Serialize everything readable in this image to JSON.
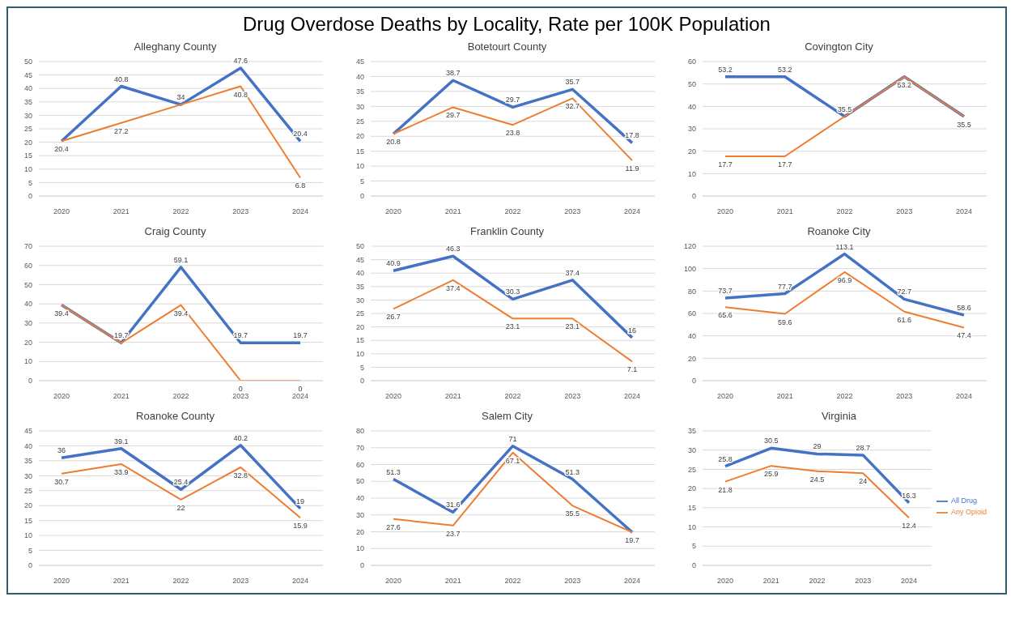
{
  "chart_data": [
    {
      "type": "other",
      "title": "Drug Overdose Deaths by Locality, Rate per 100K Population"
    },
    {
      "type": "line",
      "title": "Alleghany County",
      "categories": [
        "2020",
        "2021",
        "2022",
        "2023",
        "2024"
      ],
      "ylim": [
        0,
        50
      ],
      "yticks": [
        0,
        5,
        10,
        15,
        20,
        25,
        30,
        35,
        40,
        45,
        50
      ],
      "grid": "y",
      "series": [
        {
          "color": "#4472c4",
          "values": [
            20.4,
            40.8,
            34,
            47.6,
            20.4
          ],
          "value_labels": [
            null,
            "40.8",
            "34",
            "47.6",
            "20.4"
          ]
        },
        {
          "color": "#ed7d31",
          "values": [
            20.4,
            27.2,
            34,
            40.8,
            6.8
          ],
          "value_labels": [
            "20.4",
            "27.2",
            null,
            "40.8",
            "6.8"
          ]
        }
      ]
    },
    {
      "type": "line",
      "title": "Botetourt County",
      "categories": [
        "2020",
        "2021",
        "2022",
        "2023",
        "2024"
      ],
      "ylim": [
        0,
        45
      ],
      "yticks": [
        0,
        5,
        10,
        15,
        20,
        25,
        30,
        35,
        40,
        45
      ],
      "grid": "y",
      "series": [
        {
          "color": "#4472c4",
          "values": [
            20.8,
            38.7,
            29.7,
            35.7,
            17.8
          ],
          "value_labels": [
            null,
            "38.7",
            "29.7",
            "35.7",
            "17.8"
          ]
        },
        {
          "color": "#ed7d31",
          "values": [
            20.8,
            29.7,
            23.8,
            32.7,
            11.9
          ],
          "value_labels": [
            "20.8",
            "29.7",
            "23.8",
            "32.7",
            "11.9"
          ]
        }
      ]
    },
    {
      "type": "line",
      "title": "Covington City",
      "categories": [
        "2020",
        "2021",
        "2022",
        "2023",
        "2024"
      ],
      "ylim": [
        0,
        60
      ],
      "yticks": [
        0,
        10,
        20,
        30,
        40,
        50,
        60
      ],
      "grid": "y",
      "series": [
        {
          "color": "#4472c4",
          "values": [
            53.2,
            53.2,
            35.5,
            53.2,
            35.5
          ],
          "value_labels": [
            "53.2",
            "53.2",
            "35.5",
            null,
            null
          ]
        },
        {
          "color": "#ed7d31",
          "values": [
            17.7,
            17.7,
            35.5,
            53.2,
            35.5
          ],
          "value_labels": [
            "17.7",
            "17.7",
            null,
            "53.2",
            "35.5"
          ]
        }
      ]
    },
    {
      "type": "line",
      "title": "Craig County",
      "categories": [
        "2020",
        "2021",
        "2022",
        "2023",
        "2024"
      ],
      "ylim": [
        0,
        70
      ],
      "yticks": [
        0,
        10,
        20,
        30,
        40,
        50,
        60,
        70
      ],
      "grid": "y",
      "series": [
        {
          "color": "#4472c4",
          "values": [
            39.4,
            19.7,
            59.1,
            19.7,
            19.7
          ],
          "value_labels": [
            null,
            "19.7",
            "59.1",
            "19.7",
            "19.7"
          ]
        },
        {
          "color": "#ed7d31",
          "values": [
            39.4,
            19.7,
            39.4,
            0,
            0
          ],
          "value_labels": [
            "39.4",
            null,
            "39.4",
            "0",
            "0"
          ]
        }
      ]
    },
    {
      "type": "line",
      "title": "Franklin County",
      "categories": [
        "2020",
        "2021",
        "2022",
        "2023",
        "2024"
      ],
      "ylim": [
        0,
        50
      ],
      "yticks": [
        0,
        5,
        10,
        15,
        20,
        25,
        30,
        35,
        40,
        45,
        50
      ],
      "grid": "y",
      "series": [
        {
          "color": "#4472c4",
          "values": [
            40.9,
            46.3,
            30.3,
            37.4,
            16
          ],
          "value_labels": [
            "40.9",
            "46.3",
            "30.3",
            "37.4",
            "16"
          ]
        },
        {
          "color": "#ed7d31",
          "values": [
            26.7,
            37.4,
            23.1,
            23.1,
            7.1
          ],
          "value_labels": [
            "26.7",
            "37.4",
            "23.1",
            "23.1",
            "7.1"
          ]
        }
      ]
    },
    {
      "type": "line",
      "title": "Roanoke City",
      "categories": [
        "2020",
        "2021",
        "2022",
        "2023",
        "2024"
      ],
      "ylim": [
        0,
        120
      ],
      "yticks": [
        0,
        20,
        40,
        60,
        80,
        100,
        120
      ],
      "grid": "y",
      "series": [
        {
          "color": "#4472c4",
          "values": [
            73.7,
            77.7,
            113.1,
            72.7,
            58.6
          ],
          "value_labels": [
            "73.7",
            "77.7",
            "113.1",
            "72.7",
            "58.6"
          ]
        },
        {
          "color": "#ed7d31",
          "values": [
            65.6,
            59.6,
            96.9,
            61.6,
            47.4
          ],
          "value_labels": [
            "65.6",
            "59.6",
            "96.9",
            "61.6",
            "47.4"
          ]
        }
      ]
    },
    {
      "type": "line",
      "title": "Roanoke County",
      "categories": [
        "2020",
        "2021",
        "2022",
        "2023",
        "2024"
      ],
      "ylim": [
        0,
        45
      ],
      "yticks": [
        0,
        5,
        10,
        15,
        20,
        25,
        30,
        35,
        40,
        45
      ],
      "grid": "y",
      "series": [
        {
          "color": "#4472c4",
          "values": [
            36,
            39.1,
            25.4,
            40.2,
            19
          ],
          "value_labels": [
            "36",
            "39.1",
            "25.4",
            "40.2",
            "19"
          ]
        },
        {
          "color": "#ed7d31",
          "values": [
            30.7,
            33.9,
            22,
            32.8,
            15.9
          ],
          "value_labels": [
            "30.7",
            "33.9",
            "22",
            "32.8",
            "15.9"
          ]
        }
      ]
    },
    {
      "type": "line",
      "title": "Salem City",
      "categories": [
        "2020",
        "2021",
        "2022",
        "2023",
        "2024"
      ],
      "ylim": [
        0,
        80
      ],
      "yticks": [
        0,
        10,
        20,
        30,
        40,
        50,
        60,
        70,
        80
      ],
      "grid": "y",
      "series": [
        {
          "color": "#4472c4",
          "values": [
            51.3,
            31.6,
            71,
            51.3,
            19.7
          ],
          "value_labels": [
            "51.3",
            "31.6",
            "71",
            "51.3",
            null
          ]
        },
        {
          "color": "#ed7d31",
          "values": [
            27.6,
            23.7,
            67.1,
            35.5,
            19.7
          ],
          "value_labels": [
            "27.6",
            "23.7",
            "67.1",
            "35.5",
            "19.7"
          ]
        }
      ]
    },
    {
      "type": "line",
      "title": "Virginia",
      "categories": [
        "2020",
        "2021",
        "2022",
        "2023",
        "2024"
      ],
      "ylim": [
        0,
        35
      ],
      "yticks": [
        0,
        5,
        10,
        15,
        20,
        25,
        30,
        35
      ],
      "grid": "y",
      "legend": "right",
      "series": [
        {
          "name": "All Drug",
          "color": "#4472c4",
          "values": [
            25.8,
            30.5,
            29,
            28.7,
            16.3
          ],
          "value_labels": [
            "25.8",
            "30.5",
            "29",
            "28.7",
            "16.3"
          ]
        },
        {
          "name": "Any Opioid",
          "color": "#ed7d31",
          "values": [
            21.8,
            25.9,
            24.5,
            24,
            12.4
          ],
          "value_labels": [
            "21.8",
            "25.9",
            "24.5",
            "24",
            "12.4"
          ]
        }
      ]
    }
  ]
}
